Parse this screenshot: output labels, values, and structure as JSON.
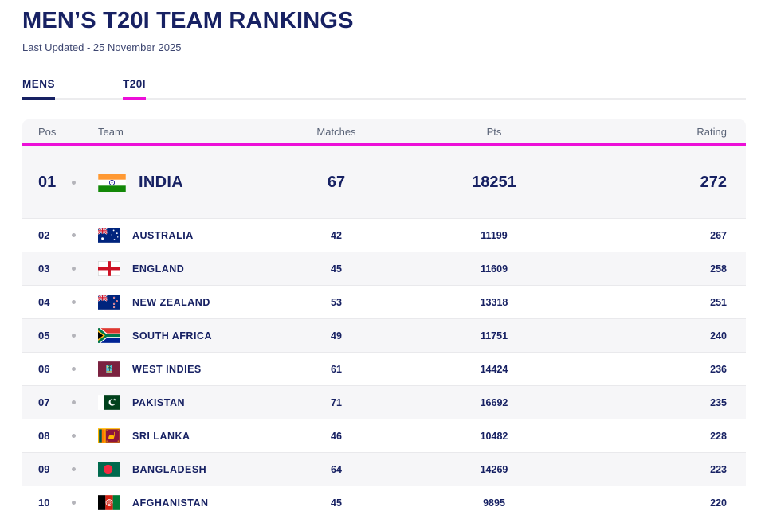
{
  "page": {
    "title": "MEN’S T20I TEAM RANKINGS",
    "last_updated": "Last Updated - 25 November 2025"
  },
  "tabs": [
    {
      "label": "MENS"
    },
    {
      "label": "T20I"
    }
  ],
  "table": {
    "columns": [
      "Pos",
      "Team",
      "Matches",
      "Pts",
      "Rating"
    ],
    "rows": [
      {
        "pos": "01",
        "team": "INDIA",
        "flag": "india",
        "matches": "67",
        "pts": "18251",
        "rating": "272",
        "featured": true
      },
      {
        "pos": "02",
        "team": "AUSTRALIA",
        "flag": "australia",
        "matches": "42",
        "pts": "11199",
        "rating": "267"
      },
      {
        "pos": "03",
        "team": "ENGLAND",
        "flag": "england",
        "matches": "45",
        "pts": "11609",
        "rating": "258"
      },
      {
        "pos": "04",
        "team": "NEW ZEALAND",
        "flag": "new-zealand",
        "matches": "53",
        "pts": "13318",
        "rating": "251"
      },
      {
        "pos": "05",
        "team": "SOUTH AFRICA",
        "flag": "south-africa",
        "matches": "49",
        "pts": "11751",
        "rating": "240"
      },
      {
        "pos": "06",
        "team": "WEST INDIES",
        "flag": "west-indies",
        "matches": "61",
        "pts": "14424",
        "rating": "236"
      },
      {
        "pos": "07",
        "team": "PAKISTAN",
        "flag": "pakistan",
        "matches": "71",
        "pts": "16692",
        "rating": "235"
      },
      {
        "pos": "08",
        "team": "SRI LANKA",
        "flag": "sri-lanka",
        "matches": "46",
        "pts": "10482",
        "rating": "228"
      },
      {
        "pos": "09",
        "team": "BANGLADESH",
        "flag": "bangladesh",
        "matches": "64",
        "pts": "14269",
        "rating": "223"
      },
      {
        "pos": "10",
        "team": "AFGHANISTAN",
        "flag": "afghanistan",
        "matches": "45",
        "pts": "9895",
        "rating": "220"
      }
    ]
  },
  "colors": {
    "navy": "#172163",
    "accent_pink": "#ec0fd8",
    "header_text": "#5a6377",
    "row_alt_bg": "#f6f6f8"
  }
}
